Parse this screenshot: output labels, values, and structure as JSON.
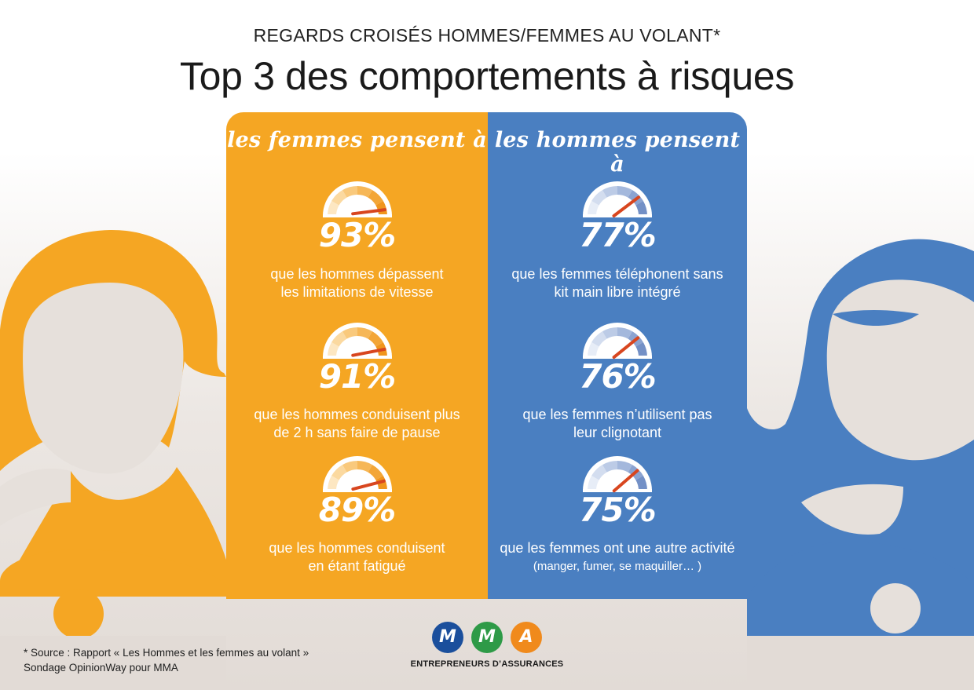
{
  "header": {
    "subtitle": "REGARDS CROISÉS HOMMES/FEMMES AU VOLANT*",
    "title": "Top 3 des comportements à risques"
  },
  "women": {
    "heading": "les femmes pensent à",
    "color": "#f5a623",
    "stats": [
      {
        "value": "93%",
        "line1": "que les hommes dépassent",
        "line2": "les limitations de vitesse",
        "level": 0.93
      },
      {
        "value": "91%",
        "line1": "que les hommes conduisent plus",
        "line2": "de 2 h sans faire de pause",
        "level": 0.91
      },
      {
        "value": "89%",
        "line1": "que les hommes conduisent",
        "line2": "en étant fatigué",
        "level": 0.89
      }
    ]
  },
  "men": {
    "heading": "les hommes pensent à",
    "color": "#4a7fc1",
    "stats": [
      {
        "value": "77%",
        "line1": "que les femmes téléphonent sans",
        "line2": "kit main libre intégré",
        "level": 0.77
      },
      {
        "value": "76%",
        "line1": "que les femmes n’utilisent pas",
        "line2": "leur clignotant",
        "level": 0.76
      },
      {
        "value": "75%",
        "line1": "que les femmes ont une autre activité",
        "line2": "(manger, fumer, se maquiller… )",
        "level": 0.75
      }
    ]
  },
  "footer": {
    "source_line1": "* Source : Rapport « Les Hommes et les femmes au volant »",
    "source_line2": "Sondage OpinionWay pour MMA",
    "logo_letters": [
      "M",
      "M",
      "A"
    ],
    "logo_colors": [
      "#1b4f9c",
      "#2e9a47",
      "#f08a1c"
    ],
    "logo_tagline": "ENTREPRENEURS D’ASSURANCES"
  }
}
